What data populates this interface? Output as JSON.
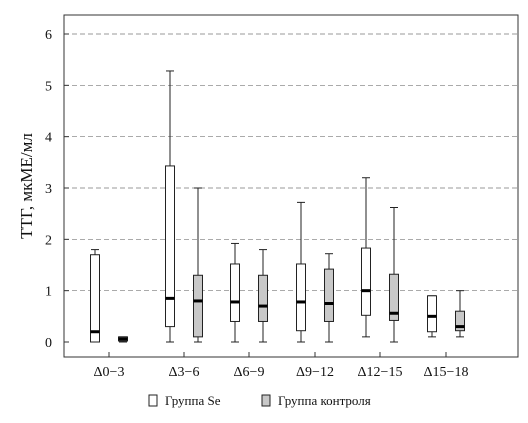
{
  "chart_data": {
    "type": "boxplot",
    "ylabel": "ТТГ, мкМЕ/мл",
    "ylim": [
      0,
      6.3
    ],
    "yticks": [
      "0",
      "1",
      "2",
      "3",
      "4",
      "5",
      "6"
    ],
    "ytick_values": [
      0,
      1,
      2,
      3,
      4,
      5,
      6
    ],
    "grid": true,
    "categories": [
      "Δ0−3",
      "Δ3−6",
      "Δ6−9",
      "Δ9−12",
      "Δ12−15",
      "Δ15−18"
    ],
    "legend_position": "bottom",
    "series": [
      {
        "name": "Группа Se",
        "color": "#ffffff",
        "boxes": [
          {
            "min": 0,
            "q1": 0,
            "median": 0.2,
            "q3": 1.7,
            "max": 1.8
          },
          {
            "min": 0,
            "q1": 0.3,
            "median": 0.85,
            "q3": 3.43,
            "max": 5.28
          },
          {
            "min": 0,
            "q1": 0.4,
            "median": 0.78,
            "q3": 1.52,
            "max": 1.92
          },
          {
            "min": 0,
            "q1": 0.22,
            "median": 0.78,
            "q3": 1.52,
            "max": 2.72
          },
          {
            "min": 0.1,
            "q1": 0.52,
            "median": 1.0,
            "q3": 1.83,
            "max": 3.2
          },
          {
            "min": 0.1,
            "q1": 0.2,
            "median": 0.5,
            "q3": 0.9,
            "max": 0.9
          }
        ]
      },
      {
        "name": "Группа контроля",
        "color": "#c8c8c8",
        "boxes": [
          {
            "min": 0,
            "q1": 0.02,
            "median": 0.06,
            "q3": 0.1,
            "max": 0.1
          },
          {
            "min": 0,
            "q1": 0.1,
            "median": 0.8,
            "q3": 1.3,
            "max": 3.0
          },
          {
            "min": 0,
            "q1": 0.4,
            "median": 0.7,
            "q3": 1.3,
            "max": 1.8
          },
          {
            "min": 0,
            "q1": 0.4,
            "median": 0.75,
            "q3": 1.42,
            "max": 1.72
          },
          {
            "min": 0,
            "q1": 0.42,
            "median": 0.56,
            "q3": 1.32,
            "max": 2.62
          },
          {
            "min": 0.1,
            "q1": 0.22,
            "median": 0.3,
            "q3": 0.6,
            "max": 1.0
          }
        ]
      }
    ]
  }
}
